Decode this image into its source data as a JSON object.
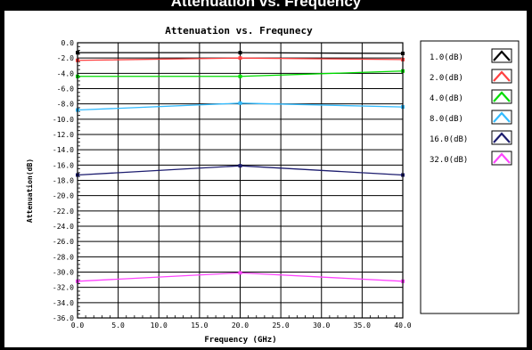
{
  "page": {
    "title": "Attenuation vs. Frequency"
  },
  "chart_data": {
    "type": "line",
    "title": "Attenuation vs. Frequnecy",
    "xlabel": "Frequency (GHz)",
    "ylabel": "Attenuation(dB)",
    "xlim": [
      0,
      40
    ],
    "ylim": [
      -36,
      0
    ],
    "x_ticks": [
      "0.0",
      "5.0",
      "10.0",
      "15.0",
      "20.0",
      "25.0",
      "30.0",
      "35.0",
      "40.0"
    ],
    "y_ticks": [
      "0.0",
      "-2.0",
      "-4.0",
      "-6.0",
      "-8.0",
      "-10.0",
      "-12.0",
      "-14.0",
      "-16.0",
      "-18.0",
      "-20.0",
      "-22.0",
      "-24.0",
      "-26.0",
      "-28.0",
      "-30.0",
      "-32.0",
      "-34.0",
      "-36.0"
    ],
    "x_tick_values": [
      0,
      5,
      10,
      15,
      20,
      25,
      30,
      35,
      40
    ],
    "y_tick_values": [
      0,
      -2,
      -4,
      -6,
      -8,
      -10,
      -12,
      -14,
      -16,
      -18,
      -20,
      -22,
      -24,
      -26,
      -28,
      -30,
      -32,
      -34,
      -36
    ],
    "grid": true,
    "legend_position": "right",
    "x": [
      0,
      20,
      40
    ],
    "series": [
      {
        "name": "1.0(dB)",
        "color": "#000000",
        "values": [
          -1.3,
          -1.3,
          -1.4
        ]
      },
      {
        "name": "2.0(dB)",
        "color": "#ff4040",
        "values": [
          -2.3,
          -2.0,
          -2.2
        ]
      },
      {
        "name": "4.0(dB)",
        "color": "#00dd00",
        "values": [
          -4.4,
          -4.4,
          -3.7
        ]
      },
      {
        "name": "8.0(dB)",
        "color": "#33bbff",
        "values": [
          -8.8,
          -7.9,
          -8.4
        ]
      },
      {
        "name": "16.0(dB)",
        "color": "#1c1c6e",
        "values": [
          -17.3,
          -16.1,
          -17.3
        ]
      },
      {
        "name": "32.0(dB)",
        "color": "#ff44ff",
        "values": [
          -31.2,
          -30.1,
          -31.2
        ]
      }
    ]
  }
}
